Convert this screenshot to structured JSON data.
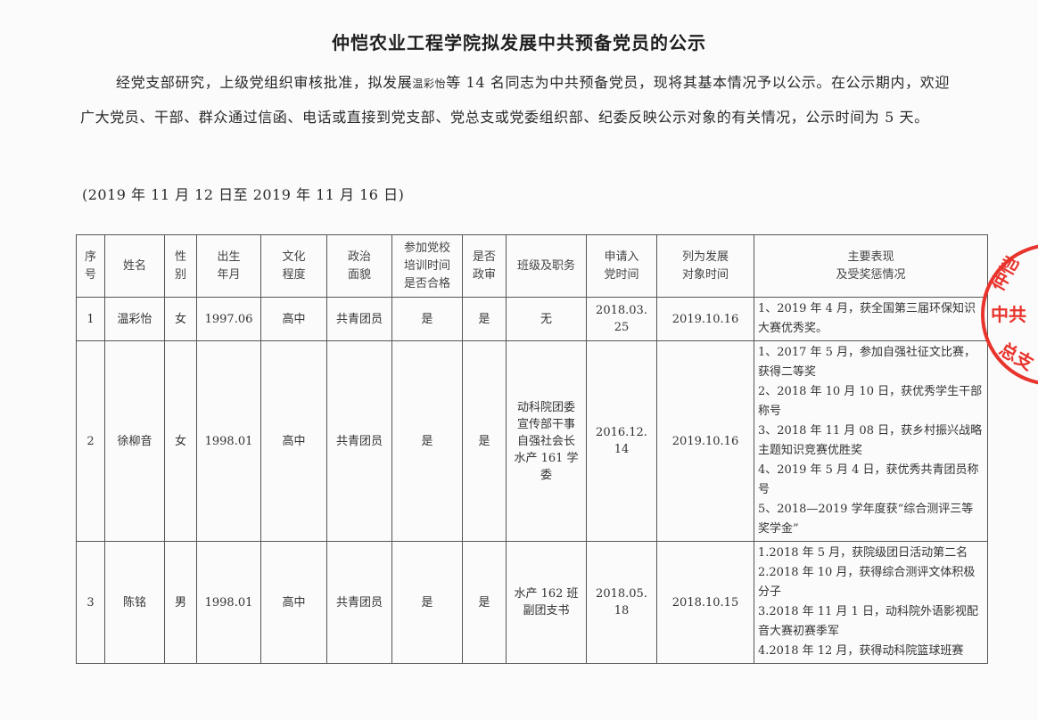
{
  "title": "仲恺农业工程学院拟发展中共预备党员的公示",
  "intro": {
    "before": "经党支部研究，上级党组织审核批准，拟发展",
    "name": "温彩怡",
    "after": "等 14 名同志为中共预备党员，现将其基本情况予以公示。在公示期内，欢迎广大党员、干部、群众通过信函、电话或直接到党支部、党总支或党委组织部、纪委反映公示对象的有关情况，公示时间为 5 天。"
  },
  "period": "(2019 年 11 月 12 日至 2019 年 11 月 16 日)",
  "table": {
    "headers": [
      "序\n号",
      "姓名",
      "性\n别",
      "出生\n年月",
      "文化\n程度",
      "政治\n面貌",
      "参加党校\n培训时间\n是否合格",
      "是否\n政审",
      "班级及职务",
      "申请入\n党时间",
      "列为发展\n对象时间",
      "主要表现\n及受奖惩情况"
    ],
    "rows": [
      {
        "no": "1",
        "name": "温彩怡",
        "gender": "女",
        "birth": "1997.06",
        "education": "高中",
        "political": "共青团员",
        "training": "是",
        "review": "是",
        "position": "无",
        "apply_date": "2018.03.\n25",
        "candidate_date": "2019.10.16",
        "awards": "1、2019 年 4 月，获全国第三届环保知识大赛优秀奖。"
      },
      {
        "no": "2",
        "name": "徐柳音",
        "gender": "女",
        "birth": "1998.01",
        "education": "高中",
        "political": "共青团员",
        "training": "是",
        "review": "是",
        "position": "动科院团委\n宣传部干事\n自强社会长\n水产 161 学\n委",
        "apply_date": "2016.12.\n14",
        "candidate_date": "2019.10.16",
        "awards": "1、2017 年 5 月，参加自强社征文比赛，获得二等奖\n2、2018 年 10 月 10 日，获优秀学生干部称号\n3、2018 年 11 月 08 日，获乡村振兴战略主题知识竞赛优胜奖\n4、2019 年 5 月 4 日，获优秀共青团员称号\n5、2018—2019 学年度获“综合测评三等奖学金”"
      },
      {
        "no": "3",
        "name": "陈铭",
        "gender": "男",
        "birth": "1998.01",
        "education": "高中",
        "political": "共青团员",
        "training": "是",
        "review": "是",
        "position": "水产 162 班\n副团支书",
        "apply_date": "2018.05.\n18",
        "candidate_date": "2018.10.15",
        "awards": "1.2018 年 5 月，获院级团日活动第二名\n2.2018 年 10 月，获得综合测评文体积极分子\n3.2018 年 11 月 1 日，动科院外语影视配音大赛初赛季军\n4.2018 年 12 月，获得动科院篮球班赛"
      }
    ]
  },
  "stamp": {
    "text": "中共仲恺农…总支",
    "color": "#e8342c"
  }
}
